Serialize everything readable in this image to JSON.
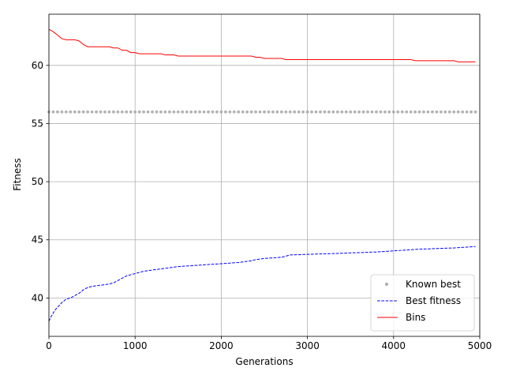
{
  "chart_data": {
    "type": "line",
    "title": "",
    "xlabel": "Generations",
    "ylabel": "Fitness",
    "xlim": [
      0,
      5000
    ],
    "ylim": [
      36.7,
      64.4
    ],
    "xticks": [
      0,
      1000,
      2000,
      3000,
      4000,
      5000
    ],
    "yticks": [
      40,
      45,
      50,
      55,
      60
    ],
    "grid": true,
    "legend_position": "lower-right",
    "series": [
      {
        "name": "Known best",
        "style": "dots",
        "color": "#aaaaaa",
        "x": [
          0,
          50,
          100,
          150,
          200,
          250,
          300,
          350,
          400,
          450,
          500,
          550,
          600,
          650,
          700,
          750,
          800,
          850,
          900,
          950,
          1000,
          1050,
          1100,
          1150,
          1200,
          1250,
          1300,
          1350,
          1400,
          1450,
          1500,
          1550,
          1600,
          1650,
          1700,
          1750,
          1800,
          1850,
          1900,
          1950,
          2000,
          2050,
          2100,
          2150,
          2200,
          2250,
          2300,
          2350,
          2400,
          2450,
          2500,
          2550,
          2600,
          2650,
          2700,
          2750,
          2800,
          2850,
          2900,
          2950,
          3000,
          3050,
          3100,
          3150,
          3200,
          3250,
          3300,
          3350,
          3400,
          3450,
          3500,
          3550,
          3600,
          3650,
          3700,
          3750,
          3800,
          3850,
          3900,
          3950,
          4000,
          4050,
          4100,
          4150,
          4200,
          4250,
          4300,
          4350,
          4400,
          4450,
          4500,
          4550,
          4600,
          4650,
          4700,
          4750,
          4800,
          4850,
          4900,
          4950
        ],
        "constant": 56
      },
      {
        "name": "Best fitness",
        "style": "dashed",
        "color": "#0000ff",
        "x": [
          0,
          25,
          50,
          75,
          100,
          150,
          200,
          250,
          300,
          350,
          400,
          450,
          500,
          600,
          700,
          750,
          800,
          850,
          900,
          950,
          1000,
          1050,
          1100,
          1200,
          1300,
          1350,
          1400,
          1500,
          1600,
          1700,
          1800,
          1900,
          2000,
          2100,
          2200,
          2250,
          2300,
          2350,
          2400,
          2450,
          2500,
          2600,
          2700,
          2750,
          2800,
          2900,
          3000,
          3100,
          3200,
          3300,
          3400,
          3500,
          3600,
          3700,
          3800,
          3900,
          4000,
          4100,
          4200,
          4250,
          4300,
          4400,
          4500,
          4600,
          4700,
          4800,
          4900,
          4950
        ],
        "y": [
          38.0,
          38.4,
          38.7,
          39.0,
          39.2,
          39.6,
          39.9,
          40.0,
          40.2,
          40.4,
          40.7,
          40.9,
          41.0,
          41.1,
          41.2,
          41.3,
          41.5,
          41.7,
          41.9,
          42.0,
          42.1,
          42.2,
          42.3,
          42.4,
          42.5,
          42.55,
          42.6,
          42.7,
          42.75,
          42.8,
          42.85,
          42.9,
          42.95,
          43.0,
          43.05,
          43.1,
          43.15,
          43.2,
          43.3,
          43.35,
          43.4,
          43.45,
          43.5,
          43.6,
          43.7,
          43.72,
          43.75,
          43.78,
          43.8,
          43.82,
          43.85,
          43.88,
          43.9,
          43.93,
          43.96,
          44.0,
          44.05,
          44.1,
          44.15,
          44.18,
          44.2,
          44.22,
          44.25,
          44.28,
          44.3,
          44.35,
          44.4,
          44.42
        ]
      },
      {
        "name": "Bins",
        "style": "solid",
        "color": "#ff0000",
        "x": [
          0,
          50,
          100,
          150,
          200,
          300,
          350,
          400,
          450,
          500,
          700,
          750,
          800,
          850,
          900,
          950,
          1000,
          1050,
          1300,
          1350,
          1450,
          1500,
          1650,
          2000,
          2350,
          2400,
          2450,
          2500,
          2650,
          2700,
          2750,
          3500,
          4200,
          4250,
          4700,
          4750,
          4950
        ],
        "y": [
          63.1,
          62.9,
          62.6,
          62.3,
          62.2,
          62.2,
          62.1,
          61.8,
          61.6,
          61.6,
          61.6,
          61.5,
          61.5,
          61.3,
          61.3,
          61.1,
          61.1,
          61.0,
          61.0,
          60.9,
          60.9,
          60.8,
          60.8,
          60.8,
          60.8,
          60.7,
          60.7,
          60.6,
          60.6,
          60.6,
          60.5,
          60.5,
          60.5,
          60.4,
          60.4,
          60.3,
          60.3
        ]
      }
    ]
  }
}
